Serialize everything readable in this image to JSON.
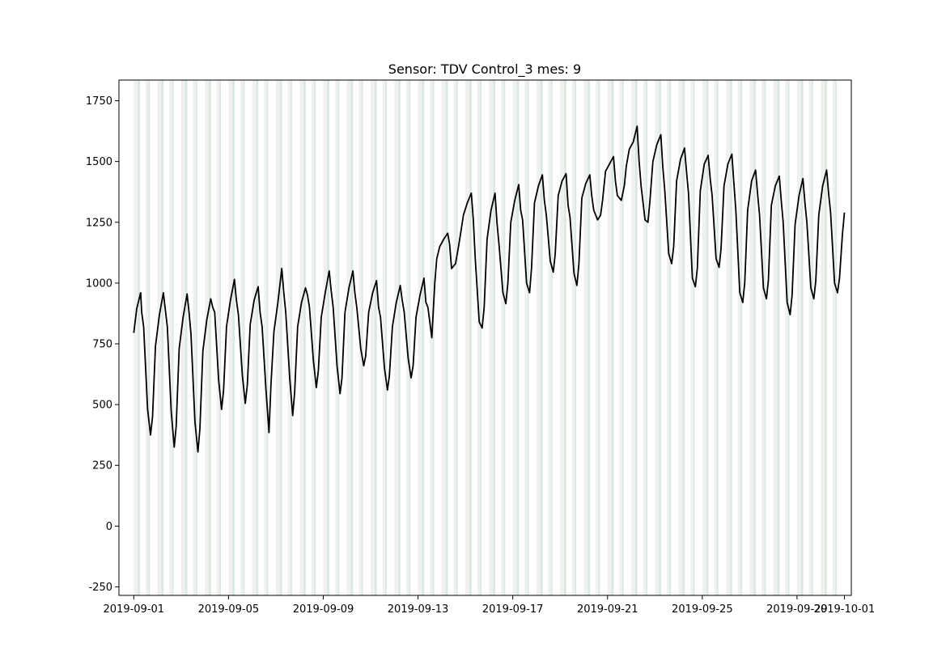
{
  "chart_data": {
    "type": "line",
    "title": "Sensor: TDV Control_3 mes: 9",
    "xlabel": "",
    "ylabel": "",
    "x_range": [
      "2019-08-31T09:00",
      "2019-10-01T07:00"
    ],
    "ylim": [
      -285,
      1835
    ],
    "x_ticks": [
      "2019-09-01",
      "2019-09-05",
      "2019-09-09",
      "2019-09-13",
      "2019-09-17",
      "2019-09-21",
      "2019-09-25",
      "2019-09-29",
      "2019-10-01"
    ],
    "y_ticks": [
      -250,
      0,
      250,
      500,
      750,
      1000,
      1250,
      1500,
      1750
    ],
    "grid": false,
    "legend": "none",
    "line_color": "#000000",
    "band_colors": {
      "light": "#ececec",
      "green": "#cfe3d4"
    },
    "series": [
      {
        "x": [
          "2019-09-01T00:00",
          "2019-09-01T03:00",
          "2019-09-01T07:00",
          "2019-09-01T08:00",
          "2019-09-01T10:00",
          "2019-09-01T14:00",
          "2019-09-01T17:00",
          "2019-09-01T19:00",
          "2019-09-01T22:00",
          "2019-09-02T02:00",
          "2019-09-02T06:00",
          "2019-09-02T08:00",
          "2019-09-02T10:00",
          "2019-09-02T14:00",
          "2019-09-02T17:00",
          "2019-09-02T19:00",
          "2019-09-02T22:00",
          "2019-09-03T02:00",
          "2019-09-03T06:00",
          "2019-09-03T08:00",
          "2019-09-03T10:00",
          "2019-09-03T14:00",
          "2019-09-03T17:00",
          "2019-09-03T19:00",
          "2019-09-03T22:00",
          "2019-09-04T02:00",
          "2019-09-04T06:00",
          "2019-09-04T08:00",
          "2019-09-04T10:00",
          "2019-09-04T14:00",
          "2019-09-04T17:00",
          "2019-09-04T19:00",
          "2019-09-04T22:00",
          "2019-09-05T02:00",
          "2019-09-05T06:00",
          "2019-09-05T08:00",
          "2019-09-05T10:00",
          "2019-09-05T14:00",
          "2019-09-05T17:00",
          "2019-09-05T19:00",
          "2019-09-05T22:00",
          "2019-09-06T02:00",
          "2019-09-06T06:00",
          "2019-09-06T08:00",
          "2019-09-06T10:00",
          "2019-09-06T14:00",
          "2019-09-06T17:00",
          "2019-09-06T19:00",
          "2019-09-06T22:00",
          "2019-09-07T02:00",
          "2019-09-07T06:00",
          "2019-09-07T08:00",
          "2019-09-07T10:00",
          "2019-09-07T14:00",
          "2019-09-07T17:00",
          "2019-09-07T19:00",
          "2019-09-07T22:00",
          "2019-09-08T02:00",
          "2019-09-08T06:00",
          "2019-09-08T08:00",
          "2019-09-08T10:00",
          "2019-09-08T14:00",
          "2019-09-08T17:00",
          "2019-09-08T19:00",
          "2019-09-08T22:00",
          "2019-09-09T02:00",
          "2019-09-09T06:00",
          "2019-09-09T08:00",
          "2019-09-09T10:00",
          "2019-09-09T14:00",
          "2019-09-09T17:00",
          "2019-09-09T19:00",
          "2019-09-09T22:00",
          "2019-09-10T02:00",
          "2019-09-10T06:00",
          "2019-09-10T08:00",
          "2019-09-10T10:00",
          "2019-09-10T14:00",
          "2019-09-10T17:00",
          "2019-09-10T19:00",
          "2019-09-10T22:00",
          "2019-09-11T02:00",
          "2019-09-11T06:00",
          "2019-09-11T08:00",
          "2019-09-11T10:00",
          "2019-09-11T14:00",
          "2019-09-11T17:00",
          "2019-09-11T19:00",
          "2019-09-11T22:00",
          "2019-09-12T02:00",
          "2019-09-12T06:00",
          "2019-09-12T08:00",
          "2019-09-12T10:00",
          "2019-09-12T14:00",
          "2019-09-12T17:00",
          "2019-09-12T19:00",
          "2019-09-12T22:00",
          "2019-09-13T02:00",
          "2019-09-13T06:00",
          "2019-09-13T08:00",
          "2019-09-13T10:00",
          "2019-09-13T14:00",
          "2019-09-13T17:00",
          "2019-09-13T19:00",
          "2019-09-13T22:00",
          "2019-09-14T02:00",
          "2019-09-14T06:00",
          "2019-09-14T08:00",
          "2019-09-14T10:00",
          "2019-09-14T14:00",
          "2019-09-14T17:00",
          "2019-09-14T19:00",
          "2019-09-14T22:00",
          "2019-09-15T02:00",
          "2019-09-15T06:00",
          "2019-09-15T08:00",
          "2019-09-15T10:00",
          "2019-09-15T14:00",
          "2019-09-15T17:00",
          "2019-09-15T19:00",
          "2019-09-15T22:00",
          "2019-09-16T02:00",
          "2019-09-16T06:00",
          "2019-09-16T08:00",
          "2019-09-16T10:00",
          "2019-09-16T14:00",
          "2019-09-16T17:00",
          "2019-09-16T19:00",
          "2019-09-16T22:00",
          "2019-09-17T02:00",
          "2019-09-17T06:00",
          "2019-09-17T08:00",
          "2019-09-17T10:00",
          "2019-09-17T14:00",
          "2019-09-17T17:00",
          "2019-09-17T19:00",
          "2019-09-17T22:00",
          "2019-09-18T02:00",
          "2019-09-18T06:00",
          "2019-09-18T08:00",
          "2019-09-18T10:00",
          "2019-09-18T14:00",
          "2019-09-18T17:00",
          "2019-09-18T19:00",
          "2019-09-18T22:00",
          "2019-09-19T02:00",
          "2019-09-19T06:00",
          "2019-09-19T08:00",
          "2019-09-19T10:00",
          "2019-09-19T14:00",
          "2019-09-19T17:00",
          "2019-09-19T19:00",
          "2019-09-19T22:00",
          "2019-09-20T02:00",
          "2019-09-20T06:00",
          "2019-09-20T08:00",
          "2019-09-20T10:00",
          "2019-09-20T14:00",
          "2019-09-20T17:00",
          "2019-09-20T19:00",
          "2019-09-20T22:00",
          "2019-09-21T02:00",
          "2019-09-21T06:00",
          "2019-09-21T08:00",
          "2019-09-21T10:00",
          "2019-09-21T14:00",
          "2019-09-21T17:00",
          "2019-09-21T19:00",
          "2019-09-21T22:00",
          "2019-09-22T02:00",
          "2019-09-22T06:00",
          "2019-09-22T08:00",
          "2019-09-22T10:00",
          "2019-09-22T14:00",
          "2019-09-22T17:00",
          "2019-09-22T19:00",
          "2019-09-22T22:00",
          "2019-09-23T02:00",
          "2019-09-23T06:00",
          "2019-09-23T08:00",
          "2019-09-23T10:00",
          "2019-09-23T14:00",
          "2019-09-23T17:00",
          "2019-09-23T19:00",
          "2019-09-23T22:00",
          "2019-09-24T02:00",
          "2019-09-24T06:00",
          "2019-09-24T08:00",
          "2019-09-24T10:00",
          "2019-09-24T14:00",
          "2019-09-24T17:00",
          "2019-09-24T19:00",
          "2019-09-24T22:00",
          "2019-09-25T02:00",
          "2019-09-25T06:00",
          "2019-09-25T08:00",
          "2019-09-25T10:00",
          "2019-09-25T14:00",
          "2019-09-25T17:00",
          "2019-09-25T19:00",
          "2019-09-25T22:00",
          "2019-09-26T02:00",
          "2019-09-26T06:00",
          "2019-09-26T08:00",
          "2019-09-26T10:00",
          "2019-09-26T14:00",
          "2019-09-26T17:00",
          "2019-09-26T19:00",
          "2019-09-26T22:00",
          "2019-09-27T02:00",
          "2019-09-27T06:00",
          "2019-09-27T08:00",
          "2019-09-27T10:00",
          "2019-09-27T14:00",
          "2019-09-27T17:00",
          "2019-09-27T19:00",
          "2019-09-27T22:00",
          "2019-09-28T02:00",
          "2019-09-28T06:00",
          "2019-09-28T08:00",
          "2019-09-28T10:00",
          "2019-09-28T14:00",
          "2019-09-28T17:00",
          "2019-09-28T19:00",
          "2019-09-28T22:00",
          "2019-09-29T02:00",
          "2019-09-29T06:00",
          "2019-09-29T08:00",
          "2019-09-29T10:00",
          "2019-09-29T14:00",
          "2019-09-29T17:00",
          "2019-09-29T19:00",
          "2019-09-29T22:00",
          "2019-09-30T02:00",
          "2019-09-30T06:00",
          "2019-09-30T08:00",
          "2019-09-30T10:00",
          "2019-09-30T14:00",
          "2019-09-30T17:00",
          "2019-09-30T19:00",
          "2019-09-30T22:00",
          "2019-10-01T00:00"
        ],
        "y": [
          795,
          895,
          960,
          880,
          820,
          480,
          375,
          450,
          740,
          870,
          960,
          890,
          820,
          470,
          325,
          410,
          730,
          860,
          955,
          880,
          790,
          430,
          305,
          400,
          720,
          850,
          935,
          900,
          880,
          600,
          480,
          560,
          820,
          930,
          1015,
          930,
          870,
          620,
          505,
          580,
          830,
          930,
          985,
          880,
          820,
          560,
          385,
          580,
          800,
          920,
          1060,
          960,
          880,
          610,
          455,
          550,
          820,
          920,
          980,
          950,
          900,
          680,
          570,
          640,
          860,
          960,
          1050,
          970,
          900,
          660,
          545,
          610,
          880,
          980,
          1050,
          960,
          900,
          730,
          660,
          700,
          880,
          960,
          1010,
          900,
          860,
          650,
          560,
          620,
          820,
          920,
          990,
          930,
          880,
          690,
          610,
          660,
          860,
          950,
          1020,
          920,
          900,
          775,
          1000,
          1100,
          1150,
          1180,
          1205,
          1160,
          1060,
          1080,
          1150,
          1200,
          1280,
          1330,
          1370,
          1260,
          1100,
          840,
          815,
          900,
          1180,
          1300,
          1370,
          1250,
          1160,
          960,
          915,
          1000,
          1250,
          1340,
          1405,
          1300,
          1260,
          1000,
          960,
          1060,
          1330,
          1400,
          1445,
          1340,
          1280,
          1090,
          1045,
          1120,
          1360,
          1420,
          1450,
          1320,
          1270,
          1040,
          990,
          1080,
          1350,
          1410,
          1445,
          1360,
          1300,
          1260,
          1280,
          1340,
          1460,
          1490,
          1520,
          1420,
          1360,
          1340,
          1400,
          1480,
          1550,
          1580,
          1645,
          1500,
          1400,
          1260,
          1250,
          1340,
          1500,
          1570,
          1610,
          1480,
          1380,
          1120,
          1080,
          1150,
          1420,
          1510,
          1555,
          1460,
          1370,
          1020,
          985,
          1060,
          1380,
          1490,
          1525,
          1430,
          1360,
          1100,
          1065,
          1140,
          1400,
          1490,
          1530,
          1410,
          1300,
          960,
          920,
          1000,
          1300,
          1420,
          1465,
          1370,
          1280,
          980,
          935,
          1010,
          1320,
          1400,
          1440,
          1340,
          1250,
          920,
          870,
          950,
          1240,
          1360,
          1430,
          1330,
          1250,
          980,
          935,
          1010,
          1280,
          1400,
          1465,
          1370,
          1290,
          1000,
          960,
          1020,
          1200,
          1290
        ]
      }
    ]
  }
}
